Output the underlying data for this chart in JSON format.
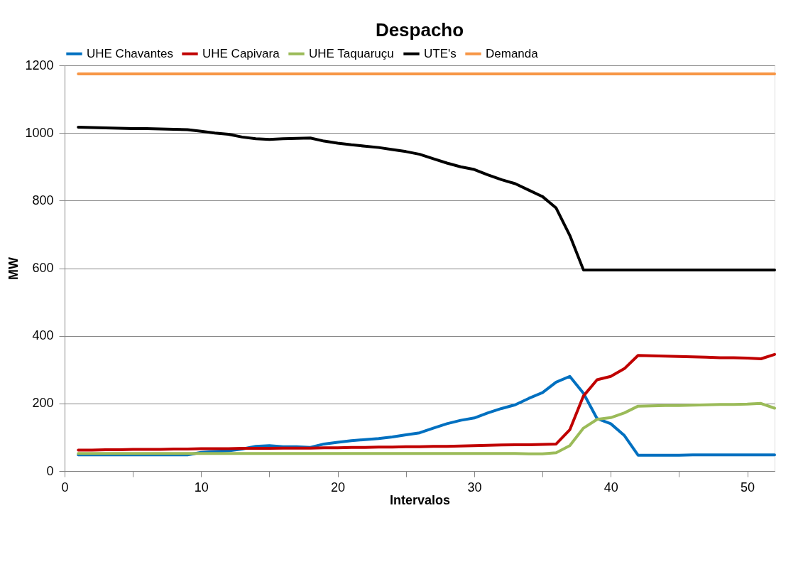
{
  "chart_data": {
    "type": "line",
    "title": "Despacho",
    "xlabel": "Intervalos",
    "ylabel": "MW",
    "x": [
      1,
      2,
      3,
      4,
      5,
      6,
      7,
      8,
      9,
      10,
      11,
      12,
      13,
      14,
      15,
      16,
      17,
      18,
      19,
      20,
      21,
      22,
      23,
      24,
      25,
      26,
      27,
      28,
      29,
      30,
      31,
      32,
      33,
      34,
      35,
      36,
      37,
      38,
      39,
      40,
      41,
      42,
      43,
      44,
      45,
      46,
      47,
      48,
      49,
      50,
      51,
      52
    ],
    "series": [
      {
        "name": "UHE Chavantes",
        "color": "#0070c0",
        "values": [
          48,
          48,
          48,
          48,
          48,
          48,
          48,
          48,
          48,
          55,
          58,
          60,
          65,
          73,
          75,
          72,
          72,
          70,
          80,
          85,
          90,
          93,
          96,
          101,
          107,
          113,
          127,
          140,
          150,
          157,
          172,
          185,
          196,
          215,
          232,
          263,
          280,
          230,
          155,
          140,
          105,
          47,
          47,
          47,
          47,
          48,
          48,
          48,
          48,
          48,
          48,
          48
        ]
      },
      {
        "name": "UHE Capivara",
        "color": "#c00000",
        "values": [
          62,
          62,
          63,
          63,
          64,
          64,
          64,
          65,
          65,
          66,
          66,
          66,
          67,
          67,
          67,
          68,
          68,
          68,
          69,
          69,
          70,
          70,
          71,
          71,
          72,
          72,
          73,
          73,
          74,
          75,
          76,
          77,
          78,
          78,
          79,
          80,
          122,
          222,
          270,
          280,
          303,
          342,
          341,
          340,
          339,
          338,
          337,
          335,
          335,
          334,
          332,
          345
        ]
      },
      {
        "name": "UHE Taquaruçu",
        "color": "#9bbb59",
        "values": [
          52,
          52,
          52,
          52,
          52,
          52,
          52,
          52,
          52,
          52,
          52,
          52,
          52,
          52,
          52,
          52,
          52,
          52,
          52,
          52,
          52,
          52,
          52,
          52,
          52,
          52,
          52,
          52,
          52,
          52,
          52,
          52,
          52,
          51,
          51,
          54,
          75,
          127,
          153,
          158,
          172,
          192,
          193,
          194,
          194,
          195,
          196,
          197,
          197,
          198,
          200,
          186
        ]
      },
      {
        "name": "UTE's",
        "color": "#000000",
        "values": [
          1017,
          1016,
          1015,
          1014,
          1013,
          1013,
          1012,
          1011,
          1010,
          1005,
          1000,
          996,
          988,
          983,
          981,
          983,
          984,
          985,
          976,
          970,
          965,
          961,
          957,
          951,
          945,
          937,
          924,
          911,
          900,
          892,
          876,
          862,
          850,
          831,
          812,
          778,
          697,
          595,
          595,
          595,
          595,
          595,
          595,
          595,
          595,
          595,
          595,
          595,
          595,
          595,
          595,
          595
        ]
      },
      {
        "name": "Demanda",
        "color": "#f79646",
        "values": [
          1175,
          1175,
          1175,
          1175,
          1175,
          1175,
          1175,
          1175,
          1175,
          1175,
          1175,
          1175,
          1175,
          1175,
          1175,
          1175,
          1175,
          1175,
          1175,
          1175,
          1175,
          1175,
          1175,
          1175,
          1175,
          1175,
          1175,
          1175,
          1175,
          1175,
          1175,
          1175,
          1175,
          1175,
          1175,
          1175,
          1175,
          1175,
          1175,
          1175,
          1175,
          1175,
          1175,
          1175,
          1175,
          1175,
          1175,
          1175,
          1175,
          1175,
          1175,
          1175
        ]
      }
    ],
    "xlim": [
      0,
      52
    ],
    "xticks": [
      0,
      {
        "value": 5,
        "label": null
      },
      10,
      {
        "value": 15,
        "label": null
      },
      20,
      {
        "value": 25,
        "label": null
      },
      30,
      {
        "value": 35,
        "label": null
      },
      40,
      {
        "value": 45,
        "label": null
      },
      50
    ],
    "ylim": [
      0,
      1200
    ],
    "yticks": [
      0,
      200,
      400,
      600,
      800,
      1000,
      1200
    ],
    "grid": "y",
    "legend": "top",
    "line_style": "solid",
    "marker": "none"
  }
}
